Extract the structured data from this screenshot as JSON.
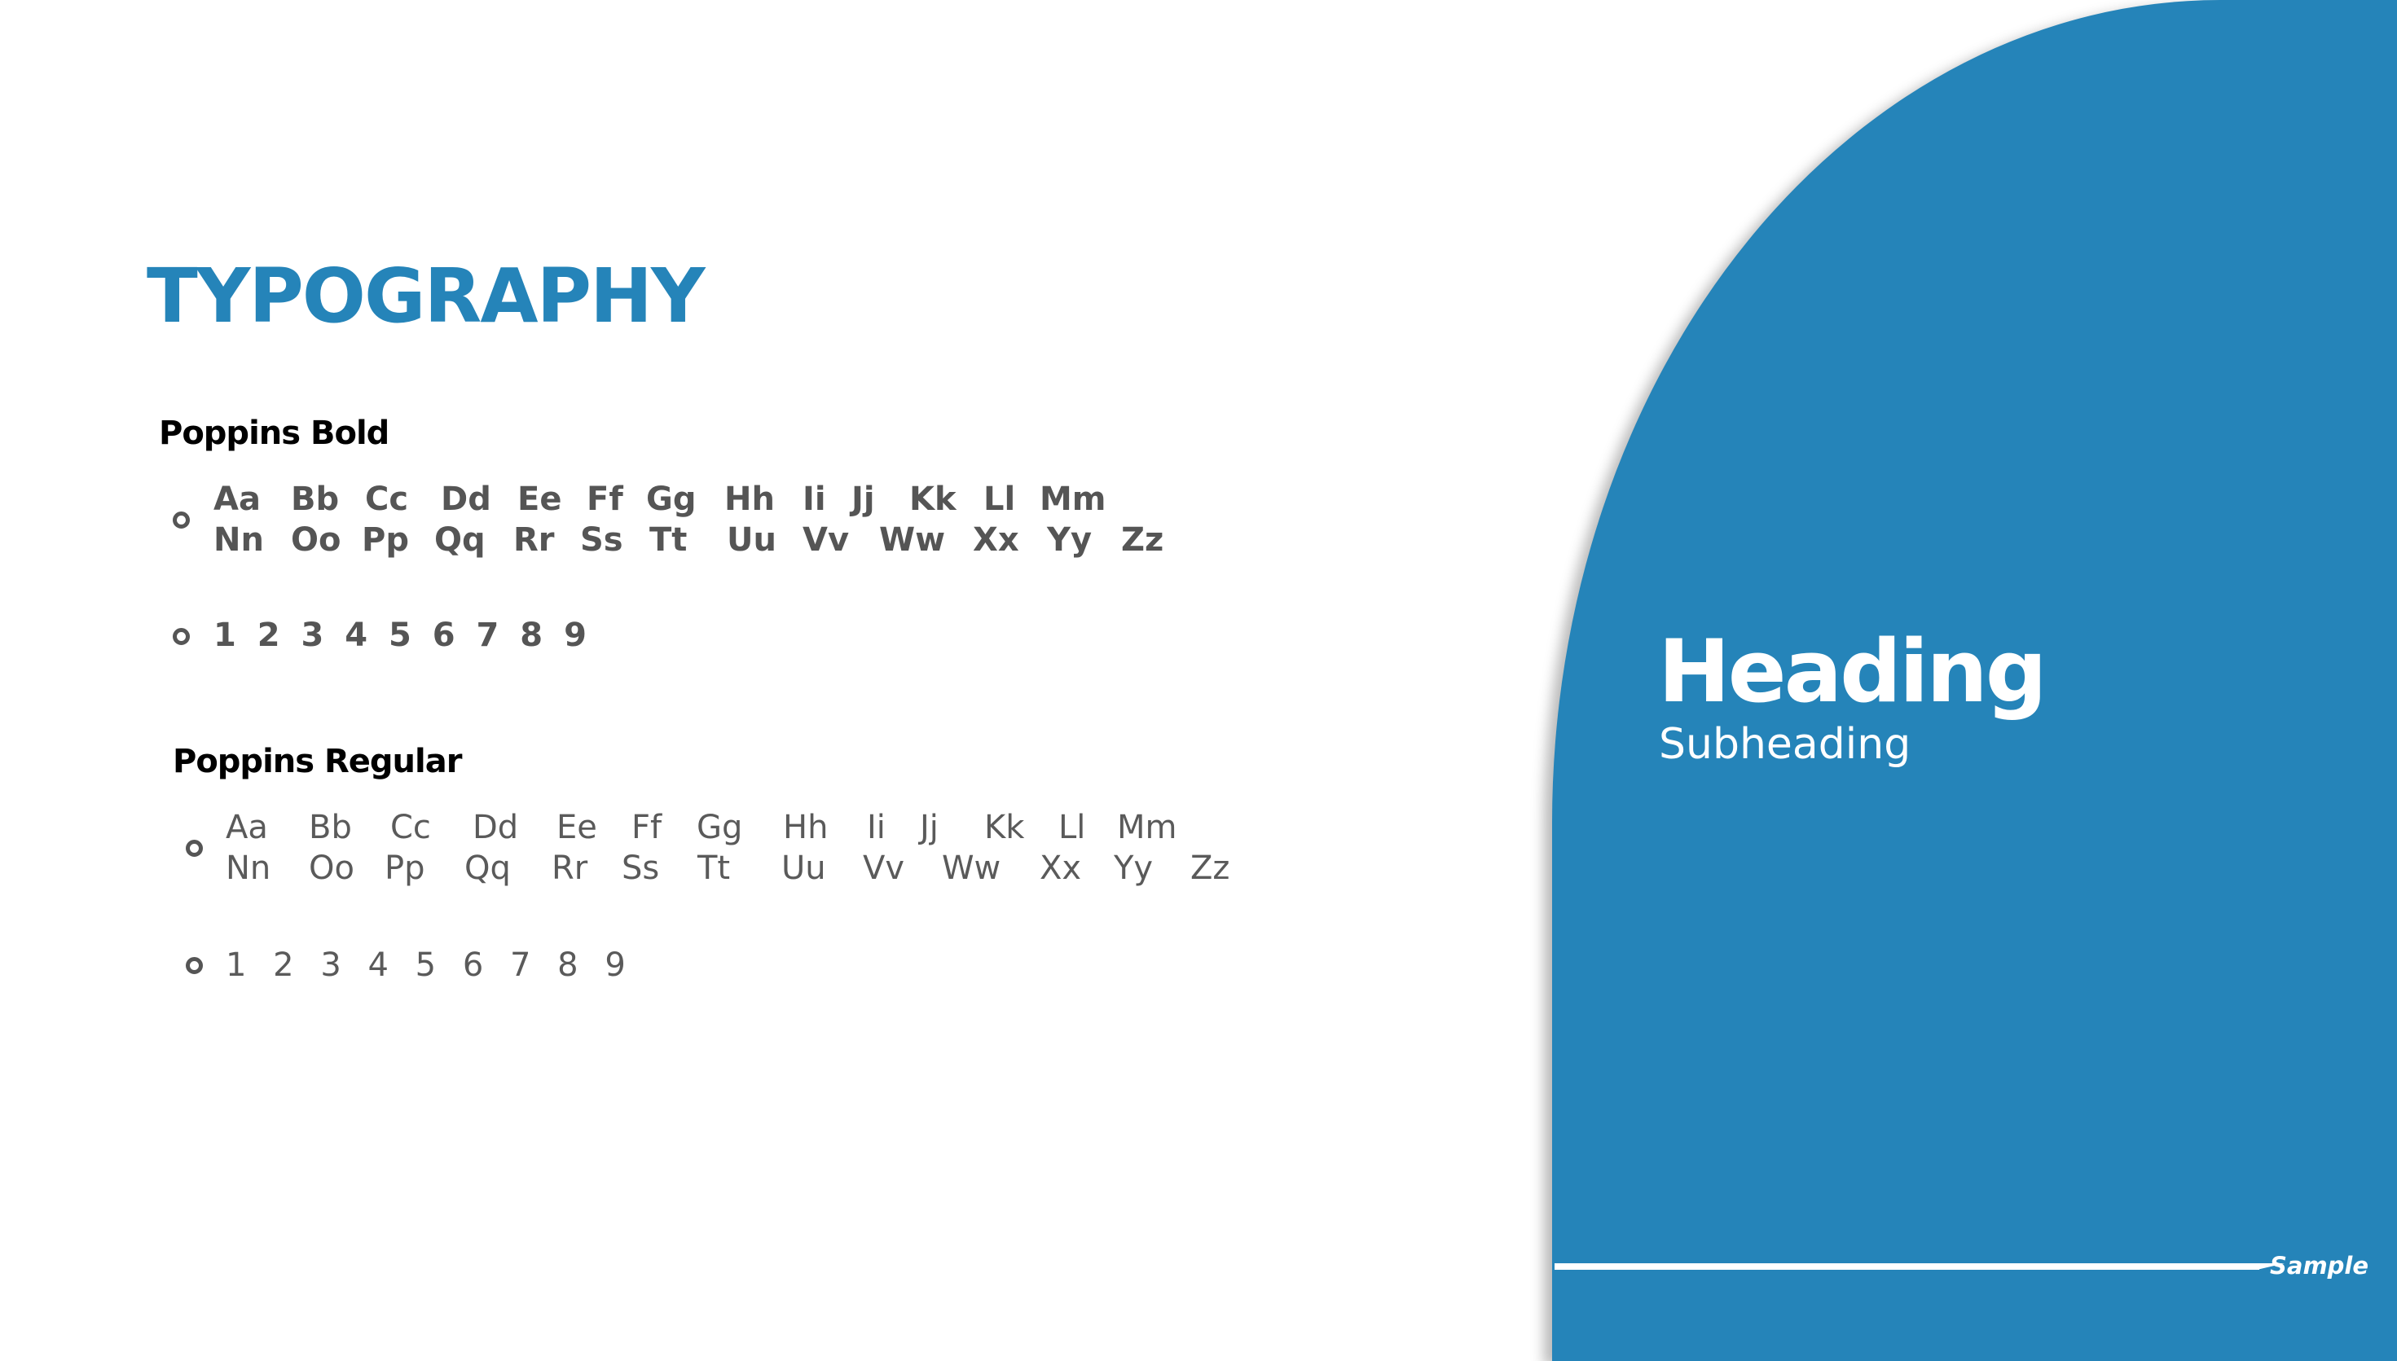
{
  "colors": {
    "accent": "#2584b9",
    "text_gray": "#555555",
    "background": "#ffffff"
  },
  "title": "TYPOGRAPHY",
  "bold_section": {
    "font_name": "Poppins Bold",
    "letters_row1": [
      "Aa",
      "Bb",
      "Cc",
      "Dd",
      "Ee",
      "Ff",
      "Gg",
      "Hh",
      "Ii",
      "Jj",
      "Kk",
      "Ll",
      "Mm"
    ],
    "letters_row2": [
      "Nn",
      "Oo",
      "Pp",
      "Qq",
      "Rr",
      "Ss",
      "Tt",
      "Uu",
      "Vv",
      "Ww",
      "Xx",
      "Yy",
      "Zz"
    ],
    "digits": "1 2 3 4 5 6 7 8 9"
  },
  "regular_section": {
    "font_name": "Poppins Regular",
    "letters_row1": [
      "Aa",
      "Bb",
      "Cc",
      "Dd",
      "Ee",
      "Ff",
      "Gg",
      "Hh",
      "Ii",
      "Jj",
      "Kk",
      "Ll",
      "Mm"
    ],
    "letters_row2": [
      "Nn",
      "Oo",
      "Pp",
      "Qq",
      "Rr",
      "Ss",
      "Tt",
      "Uu",
      "Vv",
      "Ww",
      "Xx",
      "Yy",
      "Zz"
    ],
    "digits": "1 2 3 4 5 6 7 8 9"
  },
  "panel": {
    "heading": "Heading",
    "subheading": "Subheading"
  },
  "footer": {
    "label": "Sample"
  }
}
